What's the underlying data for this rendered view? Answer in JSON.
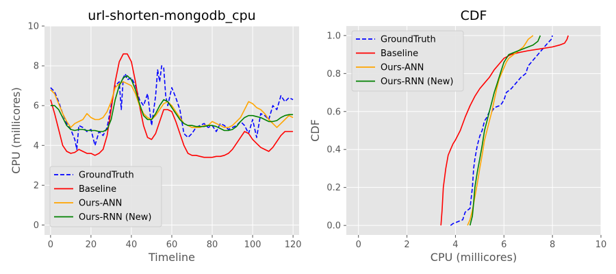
{
  "chart_data": [
    {
      "type": "line",
      "title": "url-shorten-mongodb_cpu",
      "xlabel": "Timeline",
      "ylabel": "CPU (millicores)",
      "xlim": [
        -3,
        123
      ],
      "ylim": [
        -0.5,
        10
      ],
      "xticks": [
        0,
        20,
        40,
        60,
        80,
        100,
        120
      ],
      "yticks": [
        0,
        2,
        4,
        6,
        8,
        10
      ],
      "grid": true,
      "legend_position": "lower-left",
      "series": [
        {
          "name": "GroundTruth",
          "color": "#0000ff",
          "dash": "dashed",
          "x": [
            0,
            2,
            4,
            6,
            8,
            10,
            12,
            13,
            14,
            16,
            18,
            20,
            22,
            24,
            26,
            28,
            30,
            32,
            34,
            35,
            36,
            37,
            38,
            40,
            42,
            44,
            46,
            48,
            50,
            52,
            53,
            54,
            55,
            56,
            57,
            58,
            60,
            62,
            64,
            66,
            68,
            70,
            72,
            74,
            76,
            78,
            80,
            82,
            84,
            86,
            88,
            90,
            92,
            94,
            96,
            98,
            100,
            102,
            104,
            106,
            108,
            110,
            112,
            114,
            116,
            118,
            120
          ],
          "y": [
            6.9,
            6.7,
            6.2,
            5.6,
            5.1,
            4.8,
            4.3,
            3.8,
            5.0,
            4.9,
            4.7,
            4.8,
            4.0,
            4.7,
            4.5,
            4.9,
            6.0,
            7.0,
            7.2,
            5.8,
            7.4,
            7.6,
            7.3,
            7.4,
            7.0,
            6.3,
            6.0,
            6.6,
            5.0,
            6.5,
            7.8,
            7.2,
            8.0,
            7.9,
            6.5,
            6.0,
            6.9,
            6.4,
            5.8,
            4.6,
            4.4,
            4.6,
            4.9,
            5.0,
            5.1,
            4.9,
            5.0,
            4.7,
            5.1,
            5.0,
            4.8,
            4.9,
            5.0,
            5.2,
            5.0,
            4.6,
            5.3,
            4.4,
            5.6,
            5.5,
            5.3,
            6.0,
            5.8,
            6.5,
            6.2,
            6.4,
            6.3
          ]
        },
        {
          "name": "Baseline",
          "color": "#ff0000",
          "dash": "solid",
          "x": [
            0,
            2,
            4,
            6,
            8,
            10,
            12,
            14,
            16,
            18,
            20,
            22,
            24,
            26,
            28,
            30,
            32,
            34,
            36,
            38,
            40,
            42,
            44,
            46,
            48,
            50,
            52,
            54,
            56,
            58,
            60,
            62,
            64,
            66,
            68,
            70,
            72,
            74,
            76,
            78,
            80,
            82,
            84,
            86,
            88,
            90,
            92,
            94,
            96,
            98,
            100,
            102,
            104,
            106,
            108,
            110,
            112,
            114,
            116,
            118,
            120
          ],
          "y": [
            6.3,
            5.6,
            4.8,
            4.0,
            3.7,
            3.6,
            3.65,
            3.8,
            3.7,
            3.6,
            3.6,
            3.5,
            3.6,
            3.8,
            4.5,
            5.8,
            7.2,
            8.2,
            8.6,
            8.6,
            8.2,
            7.2,
            6.0,
            5.0,
            4.4,
            4.3,
            4.6,
            5.2,
            5.8,
            5.8,
            5.7,
            5.2,
            4.6,
            4.0,
            3.6,
            3.5,
            3.5,
            3.45,
            3.4,
            3.4,
            3.4,
            3.45,
            3.45,
            3.5,
            3.6,
            3.8,
            4.1,
            4.4,
            4.7,
            4.6,
            4.3,
            4.1,
            3.9,
            3.8,
            3.7,
            3.9,
            4.2,
            4.5,
            4.7,
            4.7,
            4.7
          ]
        },
        {
          "name": "Ours-ANN",
          "color": "#ffa500",
          "dash": "solid",
          "x": [
            0,
            2,
            4,
            6,
            8,
            10,
            12,
            14,
            16,
            18,
            20,
            22,
            24,
            26,
            28,
            30,
            32,
            34,
            36,
            38,
            40,
            42,
            44,
            46,
            48,
            50,
            52,
            54,
            56,
            58,
            60,
            62,
            64,
            66,
            68,
            70,
            72,
            74,
            76,
            78,
            80,
            82,
            84,
            86,
            88,
            90,
            92,
            94,
            96,
            98,
            100,
            102,
            104,
            106,
            108,
            110,
            112,
            114,
            116,
            118,
            120
          ],
          "y": [
            6.8,
            6.6,
            6.1,
            5.6,
            5.2,
            4.9,
            5.1,
            5.2,
            5.3,
            5.6,
            5.4,
            5.3,
            5.3,
            5.4,
            5.7,
            6.2,
            6.9,
            7.1,
            7.2,
            7.1,
            7.0,
            6.6,
            6.0,
            5.6,
            5.4,
            5.3,
            5.5,
            5.8,
            6.1,
            6.2,
            6.0,
            5.7,
            5.4,
            5.1,
            5.0,
            4.9,
            4.9,
            4.9,
            5.0,
            5.0,
            5.2,
            5.1,
            5.0,
            4.9,
            4.9,
            5.0,
            5.2,
            5.4,
            5.8,
            6.2,
            6.1,
            5.9,
            5.8,
            5.6,
            5.3,
            5.1,
            4.9,
            5.1,
            5.3,
            5.5,
            5.4
          ]
        },
        {
          "name": "Ours-RNN (New)",
          "color": "#008000",
          "dash": "solid",
          "x": [
            0,
            2,
            4,
            6,
            8,
            10,
            12,
            14,
            16,
            18,
            20,
            22,
            24,
            26,
            28,
            30,
            32,
            34,
            36,
            38,
            40,
            42,
            44,
            46,
            48,
            50,
            52,
            54,
            56,
            58,
            60,
            62,
            64,
            66,
            68,
            70,
            72,
            74,
            76,
            78,
            80,
            82,
            84,
            86,
            88,
            90,
            92,
            94,
            96,
            98,
            100,
            102,
            104,
            106,
            108,
            110,
            112,
            114,
            116,
            118,
            120
          ],
          "y": [
            6.0,
            6.0,
            5.8,
            5.4,
            5.0,
            4.8,
            4.75,
            4.8,
            4.8,
            4.75,
            4.75,
            4.75,
            4.7,
            4.7,
            4.8,
            5.3,
            6.3,
            7.0,
            7.4,
            7.5,
            7.3,
            6.8,
            6.1,
            5.5,
            5.3,
            5.3,
            5.6,
            6.0,
            6.3,
            6.2,
            5.9,
            5.6,
            5.3,
            5.1,
            5.0,
            5.0,
            4.95,
            4.95,
            4.95,
            5.0,
            5.0,
            4.95,
            4.85,
            4.75,
            4.75,
            4.8,
            4.95,
            5.2,
            5.4,
            5.5,
            5.5,
            5.45,
            5.4,
            5.3,
            5.2,
            5.2,
            5.25,
            5.4,
            5.5,
            5.55,
            5.55
          ]
        }
      ]
    },
    {
      "type": "line",
      "title": "CDF",
      "xlabel": "CPU (millicores)",
      "ylabel": "CDF",
      "xlim": [
        -0.5,
        10
      ],
      "ylim": [
        -0.05,
        1.05
      ],
      "xticks": [
        0,
        2,
        4,
        6,
        8,
        10
      ],
      "yticks": [
        0.0,
        0.2,
        0.4,
        0.6,
        0.8,
        1.0
      ],
      "grid": true,
      "legend_position": "upper-left",
      "series": [
        {
          "name": "GroundTruth",
          "color": "#0000ff",
          "dash": "dashed",
          "x": [
            3.8,
            3.9,
            4.1,
            4.3,
            4.4,
            4.6,
            4.7,
            4.75,
            4.8,
            4.9,
            5.0,
            5.1,
            5.2,
            5.3,
            5.4,
            5.5,
            5.6,
            5.8,
            5.9,
            6.0,
            6.1,
            6.3,
            6.5,
            6.7,
            6.9,
            7.0,
            7.2,
            7.4,
            7.6,
            7.8,
            7.95,
            8.0
          ],
          "y": [
            0.0,
            0.01,
            0.02,
            0.03,
            0.07,
            0.09,
            0.2,
            0.3,
            0.35,
            0.42,
            0.47,
            0.5,
            0.55,
            0.57,
            0.6,
            0.6,
            0.62,
            0.63,
            0.64,
            0.66,
            0.7,
            0.72,
            0.75,
            0.78,
            0.8,
            0.84,
            0.87,
            0.9,
            0.93,
            0.96,
            0.98,
            1.0
          ]
        },
        {
          "name": "Baseline",
          "color": "#ff0000",
          "dash": "solid",
          "x": [
            3.4,
            3.45,
            3.5,
            3.6,
            3.7,
            3.8,
            3.9,
            4.0,
            4.2,
            4.4,
            4.6,
            4.8,
            5.0,
            5.2,
            5.4,
            5.6,
            5.8,
            6.0,
            6.3,
            6.6,
            7.0,
            7.5,
            8.0,
            8.3,
            8.5,
            8.6,
            8.65
          ],
          "y": [
            0.0,
            0.08,
            0.2,
            0.3,
            0.37,
            0.4,
            0.43,
            0.45,
            0.5,
            0.57,
            0.63,
            0.68,
            0.72,
            0.75,
            0.78,
            0.82,
            0.85,
            0.88,
            0.9,
            0.91,
            0.92,
            0.93,
            0.94,
            0.95,
            0.96,
            0.98,
            1.0
          ]
        },
        {
          "name": "Ours-ANN",
          "color": "#ffa500",
          "dash": "solid",
          "x": [
            4.5,
            4.6,
            4.7,
            4.8,
            4.9,
            5.0,
            5.1,
            5.2,
            5.3,
            5.4,
            5.5,
            5.6,
            5.7,
            5.8,
            5.9,
            6.0,
            6.1,
            6.2,
            6.4,
            6.6,
            6.8,
            6.9,
            7.0,
            7.1,
            7.2
          ],
          "y": [
            0.0,
            0.03,
            0.08,
            0.15,
            0.22,
            0.3,
            0.37,
            0.45,
            0.5,
            0.55,
            0.6,
            0.66,
            0.72,
            0.77,
            0.8,
            0.83,
            0.86,
            0.88,
            0.9,
            0.92,
            0.94,
            0.96,
            0.98,
            0.99,
            1.0
          ]
        },
        {
          "name": "Ours-RNN (New)",
          "color": "#008000",
          "dash": "solid",
          "x": [
            4.6,
            4.7,
            4.75,
            4.8,
            4.9,
            5.0,
            5.1,
            5.2,
            5.3,
            5.4,
            5.5,
            5.6,
            5.7,
            5.8,
            5.9,
            6.0,
            6.2,
            6.4,
            6.6,
            6.8,
            7.0,
            7.2,
            7.4,
            7.5
          ],
          "y": [
            0.0,
            0.05,
            0.12,
            0.2,
            0.28,
            0.35,
            0.42,
            0.5,
            0.55,
            0.6,
            0.65,
            0.7,
            0.74,
            0.78,
            0.82,
            0.86,
            0.9,
            0.91,
            0.92,
            0.93,
            0.94,
            0.95,
            0.97,
            1.0
          ]
        }
      ]
    }
  ]
}
